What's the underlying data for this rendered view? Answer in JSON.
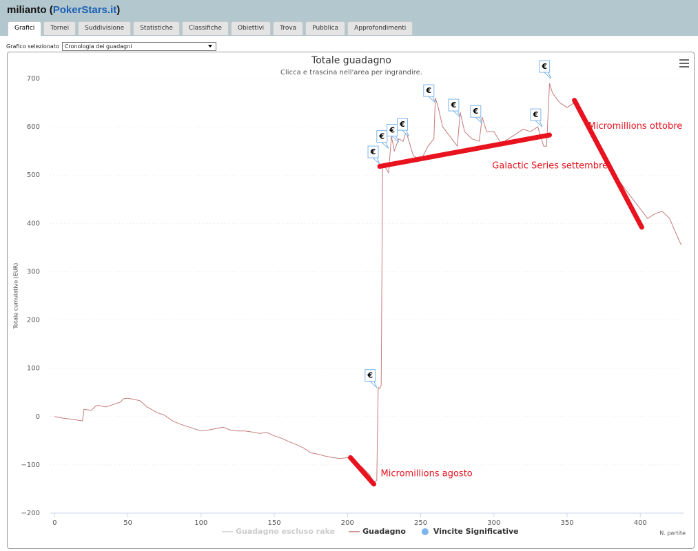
{
  "header": {
    "user": "milianto",
    "open": "(",
    "site": "PokerStars.it",
    "close": ")"
  },
  "tabs": [
    "Grafici",
    "Tornei",
    "Suddivisione",
    "Statistiche",
    "Classifiche",
    "Obiettivi",
    "Trova",
    "Pubblica",
    "Approfondimenti"
  ],
  "active_tab": 0,
  "selector": {
    "label": "Grafico selezionato",
    "value": "Cronologia dei guadagni"
  },
  "chart_data": {
    "type": "line",
    "title": "Totale guadagno",
    "subtitle": "Clicca e trascina nell'area per ingrandire.",
    "y_label": "Totale cumulativo (EUR)",
    "x_label": "N. partite",
    "xlim": [
      -3,
      430
    ],
    "xticks": [
      0,
      50,
      100,
      150,
      200,
      250,
      300,
      350,
      400
    ],
    "ylim": [
      -200,
      700
    ],
    "yticks": [
      {
        "value": -200,
        "label": "−200"
      },
      {
        "value": -100,
        "label": "−100"
      },
      0,
      100,
      200,
      300,
      400,
      500,
      600,
      700
    ],
    "grid": true,
    "series": [
      {
        "name": "Guadagno escluso rake",
        "color": "#cccccc",
        "visible": false
      },
      {
        "name": "Guadagno",
        "color": "#c47a7a",
        "visible": true,
        "x": [
          0,
          5,
          10,
          15,
          19,
          20,
          25,
          28,
          30,
          35,
          40,
          45,
          47,
          50,
          55,
          58,
          60,
          63,
          66,
          70,
          75,
          80,
          85,
          90,
          95,
          100,
          105,
          110,
          115,
          120,
          125,
          130,
          135,
          140,
          145,
          150,
          155,
          160,
          165,
          170,
          175,
          180,
          185,
          190,
          195,
          200,
          205,
          210,
          215,
          218,
          220,
          221,
          222,
          223,
          224,
          226,
          228,
          230,
          232,
          235,
          238,
          240,
          243,
          245,
          250,
          255,
          259,
          260,
          262,
          265,
          270,
          275,
          277,
          280,
          285,
          290,
          292,
          295,
          300,
          305,
          310,
          315,
          320,
          325,
          330,
          334,
          336,
          338,
          340,
          345,
          350,
          355,
          360,
          365,
          370,
          375,
          380,
          385,
          390,
          395,
          400,
          405,
          410,
          415,
          420,
          425,
          428
        ],
        "values": [
          0,
          -3,
          -5,
          -7,
          -9,
          15,
          13,
          22,
          23,
          20,
          25,
          30,
          37,
          38,
          35,
          33,
          28,
          20,
          15,
          8,
          3,
          -8,
          -15,
          -20,
          -25,
          -30,
          -28,
          -25,
          -22,
          -28,
          -30,
          -30,
          -32,
          -35,
          -33,
          -40,
          -45,
          -52,
          -58,
          -65,
          -75,
          -78,
          -82,
          -85,
          -87,
          -85,
          -95,
          -105,
          -120,
          -137,
          -132,
          60,
          58,
          65,
          520,
          515,
          505,
          580,
          550,
          575,
          570,
          590,
          560,
          540,
          530,
          560,
          575,
          660,
          640,
          600,
          580,
          560,
          630,
          590,
          575,
          570,
          620,
          590,
          590,
          565,
          575,
          585,
          595,
          590,
          600,
          560,
          560,
          690,
          670,
          650,
          640,
          650,
          620,
          595,
          560,
          540,
          520,
          490,
          470,
          450,
          430,
          410,
          420,
          425,
          410,
          375,
          355
        ]
      },
      {
        "name": "Vincite Significative",
        "color": "#7cb5ec",
        "visible": true,
        "marker_label": "€",
        "x": [
          220,
          222,
          228,
          235,
          242,
          260,
          277,
          292,
          333,
          339
        ],
        "values": [
          60,
          523,
          555,
          568,
          580,
          650,
          620,
          607,
          600,
          700
        ]
      }
    ],
    "annotations": [
      {
        "text": "Micromillions agosto",
        "color": "#e8131f",
        "from": [
          202,
          -85
        ],
        "to": [
          218,
          -140
        ]
      },
      {
        "text": "Galactic Series settembre",
        "color": "#e8131f",
        "from": [
          222,
          518
        ],
        "to": [
          338,
          583
        ]
      },
      {
        "text": "Micromillions ottobre",
        "color": "#e8131f",
        "from": [
          355,
          655
        ],
        "to": [
          401,
          392
        ]
      }
    ]
  }
}
